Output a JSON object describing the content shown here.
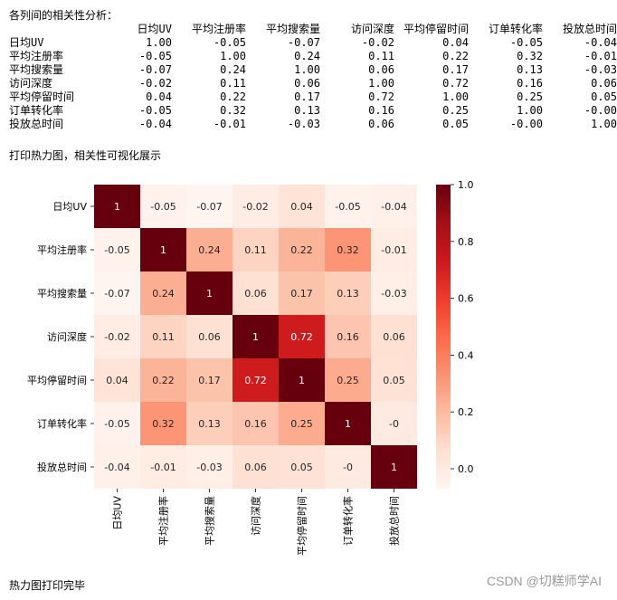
{
  "console": {
    "header_line": "各列间的相关性分析：",
    "section_line": "打印热力图，相关性可视化展示",
    "footer_line": "热力图打印完毕"
  },
  "watermark": "CSDN @切糕师学AI",
  "matrix_table": {
    "columns": [
      "日均UV",
      "平均注册率",
      "平均搜索量",
      "访问深度",
      "平均停留时间",
      "订单转化率",
      "投放总时间"
    ],
    "rows": [
      {
        "label": "日均UV",
        "values": [
          "1.00",
          "-0.05",
          "-0.07",
          "-0.02",
          "0.04",
          "-0.05",
          "-0.04"
        ]
      },
      {
        "label": "平均注册率",
        "values": [
          "-0.05",
          "1.00",
          "0.24",
          "0.11",
          "0.22",
          "0.32",
          "-0.01"
        ]
      },
      {
        "label": "平均搜索量",
        "values": [
          "-0.07",
          "0.24",
          "1.00",
          "0.06",
          "0.17",
          "0.13",
          "-0.03"
        ]
      },
      {
        "label": "访问深度",
        "values": [
          "-0.02",
          "0.11",
          "0.06",
          "1.00",
          "0.72",
          "0.16",
          "0.06"
        ]
      },
      {
        "label": "平均停留时间",
        "values": [
          "0.04",
          "0.22",
          "0.17",
          "0.72",
          "1.00",
          "0.25",
          "0.05"
        ]
      },
      {
        "label": "订单转化率",
        "values": [
          "-0.05",
          "0.32",
          "0.13",
          "0.16",
          "0.25",
          "1.00",
          "-0.00"
        ]
      },
      {
        "label": "投放总时间",
        "values": [
          "-0.04",
          "-0.01",
          "-0.03",
          "0.06",
          "0.05",
          "-0.00",
          "1.00"
        ]
      }
    ]
  },
  "chart_data": {
    "type": "heatmap",
    "labels": [
      "日均UV",
      "平均注册率",
      "平均搜索量",
      "访问深度",
      "平均停留时间",
      "订单转化率",
      "投放总时间"
    ],
    "values": [
      [
        1,
        -0.05,
        -0.07,
        -0.02,
        0.04,
        -0.05,
        -0.04
      ],
      [
        -0.05,
        1,
        0.24,
        0.11,
        0.22,
        0.32,
        -0.01
      ],
      [
        -0.07,
        0.24,
        1,
        0.06,
        0.17,
        0.13,
        -0.03
      ],
      [
        -0.02,
        0.11,
        0.06,
        1,
        0.72,
        0.16,
        0.06
      ],
      [
        0.04,
        0.22,
        0.17,
        0.72,
        1,
        0.25,
        0.05
      ],
      [
        -0.05,
        0.32,
        0.13,
        0.16,
        0.25,
        1,
        -0.0
      ],
      [
        -0.04,
        -0.01,
        -0.03,
        0.06,
        0.05,
        -0.0,
        1
      ]
    ],
    "annotations": [
      [
        "1",
        "-0.05",
        "-0.07",
        "-0.02",
        "0.04",
        "-0.05",
        "-0.04"
      ],
      [
        "-0.05",
        "1",
        "0.24",
        "0.11",
        "0.22",
        "0.32",
        "-0.01"
      ],
      [
        "-0.07",
        "0.24",
        "1",
        "0.06",
        "0.17",
        "0.13",
        "-0.03"
      ],
      [
        "-0.02",
        "0.11",
        "0.06",
        "1",
        "0.72",
        "0.16",
        "0.06"
      ],
      [
        "0.04",
        "0.22",
        "0.17",
        "0.72",
        "1",
        "0.25",
        "0.05"
      ],
      [
        "-0.05",
        "0.32",
        "0.13",
        "0.16",
        "0.25",
        "1",
        "-0"
      ],
      [
        "-0.04",
        "-0.01",
        "-0.03",
        "0.06",
        "0.05",
        "-0",
        "1"
      ]
    ],
    "colormap": "Reds",
    "vmin": -0.07,
    "vmax": 1.0,
    "colorbar_ticks": [
      0.0,
      0.2,
      0.4,
      0.6,
      0.8,
      1.0
    ],
    "colorbar_tick_labels": [
      "0.0",
      "0.2",
      "0.4",
      "0.6",
      "0.8",
      "1.0"
    ]
  }
}
